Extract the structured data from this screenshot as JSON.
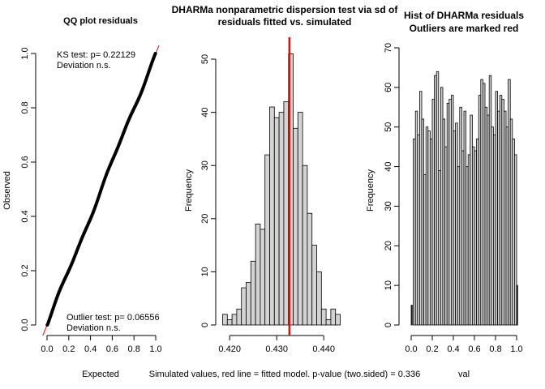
{
  "chart_data": [
    {
      "type": "scatter",
      "title": "QQ plot residuals",
      "xlabel": "Expected",
      "ylabel": "Observed",
      "xlim": [
        0,
        1
      ],
      "ylim": [
        0,
        1
      ],
      "xticks": [
        "0.0",
        "0.2",
        "0.4",
        "0.6",
        "0.8",
        "1.0"
      ],
      "yticks": [
        "0.0",
        "0.2",
        "0.4",
        "0.6",
        "0.8",
        "1.0"
      ],
      "reference_line": {
        "intercept": 0,
        "slope": 1,
        "color": "#ff0000"
      },
      "points_color": "#000000",
      "annotations": [
        {
          "text": "KS test: p= 0.22129",
          "x": 0.1,
          "y": 0.99
        },
        {
          "text": "Deviation  n.s.",
          "x": 0.1,
          "y": 0.955
        },
        {
          "text": "Outlier test: p= 0.06556",
          "x": 0.19,
          "y": 0.03
        },
        {
          "text": "Deviation  n.s.",
          "x": 0.19,
          "y": -0.005
        }
      ]
    },
    {
      "type": "bar",
      "title_lines": [
        "DHARMa nonparametric dispersion test via sd of",
        "residuals fitted vs. simulated"
      ],
      "xlabel": "Simulated values, red line = fitted model. p-value (two.sided) = 0.336",
      "ylabel": "Frequency",
      "bin_start": 0.4185,
      "bin_width": 0.001,
      "values": [
        2,
        1,
        2,
        3,
        7,
        8,
        12,
        19,
        18,
        32,
        41,
        39,
        40,
        42,
        51,
        37,
        40,
        30,
        21,
        15,
        10,
        3,
        1,
        3,
        2
      ],
      "xlim": [
        0.4185,
        0.4435
      ],
      "ylim": [
        0,
        52
      ],
      "xticks": [
        0.42,
        0.43,
        0.44
      ],
      "xtick_labels": [
        "0.420",
        "0.430",
        "0.440"
      ],
      "yticks": [
        0,
        10,
        20,
        30,
        40,
        50
      ],
      "red_line_x": 0.4327,
      "bar_color": "#d3d3d3",
      "line_color": "#ff0000"
    },
    {
      "type": "bar",
      "title_lines": [
        "Hist of DHARMa residuals",
        "Outliers are marked red"
      ],
      "xlabel": "val",
      "ylabel": "Frequency",
      "bin_start": 0,
      "bin_width": 0.02,
      "values": [
        5,
        47,
        54,
        48,
        59,
        52,
        38,
        50,
        49,
        47,
        57,
        63,
        64,
        39,
        60,
        52,
        45,
        56,
        57,
        58,
        49,
        51,
        40,
        55,
        44,
        54,
        40,
        43,
        53,
        45,
        44,
        47,
        58,
        62,
        61,
        55,
        53,
        63,
        50,
        48,
        59,
        54,
        58,
        57,
        54,
        50,
        62,
        52,
        47,
        43,
        10
      ],
      "outlier_bins": [
        0,
        50
      ],
      "xlim": [
        -0.05,
        1.05
      ],
      "ylim": [
        0,
        70
      ],
      "xticks": [
        0,
        0.2,
        0.4,
        0.6,
        0.8,
        1.0
      ],
      "xtick_labels": [
        "0.0",
        "0.2",
        "0.4",
        "0.6",
        "0.8",
        "1.0"
      ],
      "yticks": [
        0,
        10,
        20,
        30,
        40,
        50,
        60,
        70
      ],
      "bar_color": "#d3d3d3",
      "outlier_color": "#b00000"
    }
  ]
}
